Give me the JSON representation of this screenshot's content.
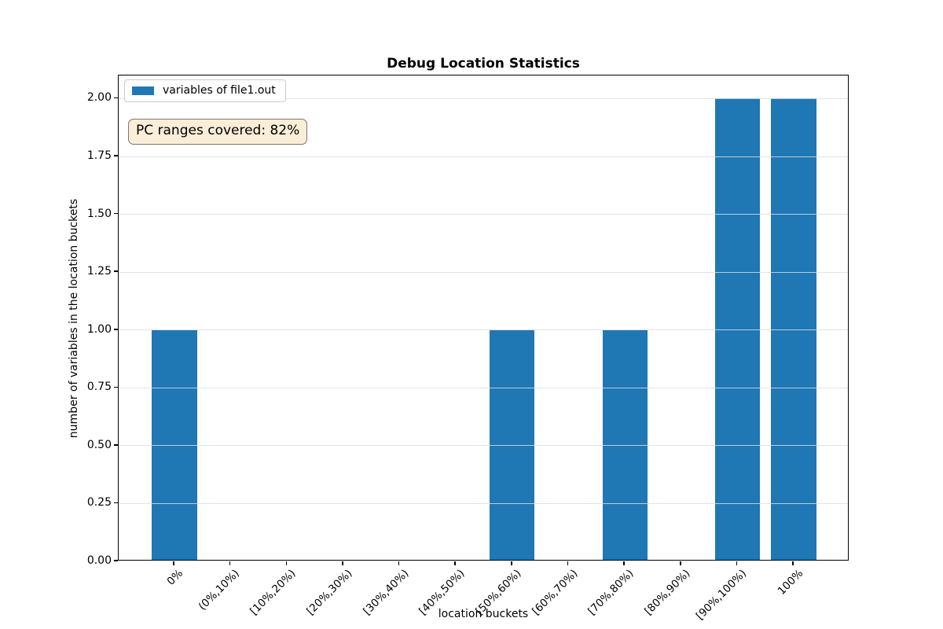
{
  "chart_data": {
    "type": "bar",
    "title": "Debug Location Statistics",
    "xlabel": "location buckets",
    "ylabel": "number of variables in the location buckets",
    "categories": [
      "0%",
      "(0%,10%)",
      "[10%,20%)",
      "[20%,30%)",
      "[30%,40%)",
      "[40%,50%)",
      "[50%,60%)",
      "[60%,70%)",
      "[70%,80%)",
      "[80%,90%)",
      "[90%,100%)",
      "100%"
    ],
    "series": [
      {
        "name": "variables of file1.out",
        "color": "#1f77b4",
        "values": [
          1,
          0,
          0,
          0,
          0,
          0,
          1,
          0,
          1,
          0,
          2,
          2
        ]
      }
    ],
    "ylim": [
      0,
      2.1
    ],
    "ytick_step": 0.25,
    "ytick_decimals": 2,
    "ytick_labels": [
      "0.00",
      "0.25",
      "0.50",
      "0.75",
      "1.00",
      "1.25",
      "1.50",
      "1.75",
      "2.00"
    ],
    "bar_width_fraction": 0.8,
    "x_margin_fraction": 0.05,
    "grid": "y",
    "legend": {
      "position": "upper left",
      "swatch_color": "#1f77b4"
    },
    "annotation": {
      "text": "PC ranges covered: 82%",
      "face_color": "#f5deb3",
      "face_alpha": 0.5
    }
  }
}
